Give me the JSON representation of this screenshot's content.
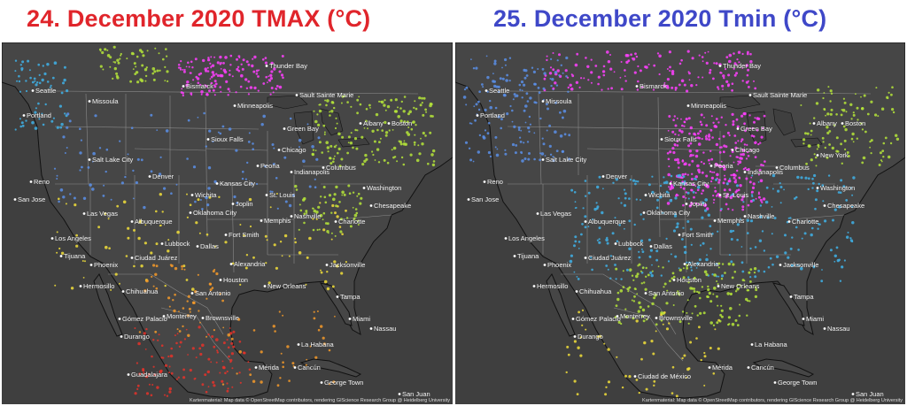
{
  "colors": {
    "tmax_title": "#e0252b",
    "tmin_title": "#3f48c8",
    "map_bg": "#3f3f3f",
    "land": "#464646",
    "border": "#8a8a8a",
    "coast": "#111111",
    "city_label": "#f2f2f2",
    "station_scale": [
      "#ff3fff",
      "#c64fe6",
      "#5a8fe8",
      "#3fb2e8",
      "#b5e53a",
      "#f2df3a",
      "#f59a2a",
      "#e5322a"
    ]
  },
  "maps": [
    {
      "id": "tmax",
      "title": "24. December 2020 TMAX (°C)",
      "credit": "Kartenmaterial: Map data © OpenStreetMap contributors, rendering GIScience Research Group @ Heidelberg University",
      "cities": [
        "Seattle",
        "Portland",
        "Missoula",
        "Bismarck",
        "Thunder Bay",
        "Sault Sainte Marie",
        "Minneapolis",
        "Green Bay",
        "Sioux Falls",
        "Salt Lake City",
        "Boston",
        "Albany",
        "Chicago",
        "Reno",
        "Denver",
        "Peoria",
        "Columbus",
        "Indianapolis",
        "Kansas City",
        "Wichita",
        "Washington",
        "St. Louis",
        "San Jose",
        "Las Vegas",
        "Nashville",
        "Joplin",
        "Chesapeake",
        "Charlotte",
        "Los Angeles",
        "Albuquerque",
        "Oklahoma City",
        "Memphis",
        "Phoenix",
        "Lubbock",
        "Fort Smith",
        "Tijuana",
        "Dallas",
        "Ciudad Juárez",
        "Alexandria",
        "Jacksonville",
        "Houston",
        "Hermosillo",
        "Chihuahua",
        "San Antonio",
        "New Orleans",
        "Tampa",
        "Miami",
        "Nassau",
        "Monterrey",
        "Brownsville",
        "Gómez Palacio",
        "Durango",
        "La Habana",
        "Guadalajara",
        "Mérida",
        "Cancún",
        "George Town",
        "San Juan"
      ]
    },
    {
      "id": "tmin",
      "title": "25. December 2020 Tmin (°C)",
      "credit": "Kartenmaterial: Map data © OpenStreetMap contributors, rendering GIScience Research Group @ Heidelberg University",
      "cities": [
        "Seattle",
        "Portland",
        "Missoula",
        "Bismarck",
        "Thunder Bay",
        "Sault Sainte Marie",
        "Minneapolis",
        "Green Bay",
        "Sioux Falls",
        "Salt Lake City",
        "Boston",
        "Albany",
        "New York",
        "Chicago",
        "Reno",
        "Denver",
        "Peoria",
        "Columbus",
        "Indianapolis",
        "Kansas City",
        "Wichita",
        "Washington",
        "St. Louis",
        "San Jose",
        "Las Vegas",
        "Nashville",
        "Joplin",
        "Chesapeake",
        "Charlotte",
        "Los Angeles",
        "Albuquerque",
        "Oklahoma City",
        "Memphis",
        "Phoenix",
        "Lubbock",
        "Fort Smith",
        "Tijuana",
        "Dallas",
        "Ciudad Juárez",
        "Alexandria",
        "Jacksonville",
        "Houston",
        "Hermosillo",
        "Chihuahua",
        "San Antonio",
        "New Orleans",
        "Tampa",
        "Miami",
        "Nassau",
        "Monterrey",
        "Brownsville",
        "Gómez Palacio",
        "Durango",
        "La Habana",
        "Ciudad de México",
        "Mérida",
        "Cancún",
        "George Town",
        "San Juan"
      ]
    }
  ]
}
